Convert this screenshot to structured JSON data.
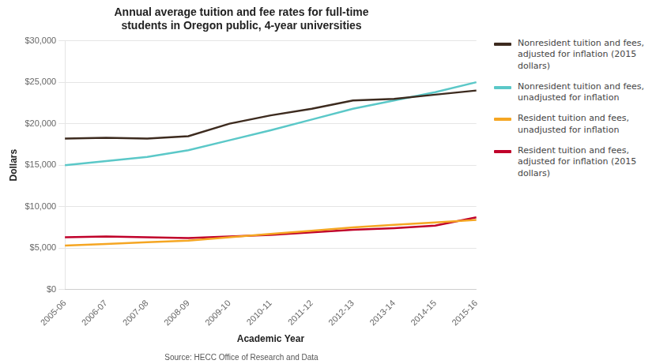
{
  "chart_data": {
    "type": "line",
    "title": "Annual average tuition and fee rates for full-time\nstudents in Oregon public, 4-year universities",
    "x_label": "Academic Year",
    "y_label": "Dollars",
    "annotations": [
      "Source: HECC Office of Research and Data"
    ],
    "categories": [
      "2005-06",
      "2006-07",
      "2007-08",
      "2008-09",
      "2009-10",
      "2010-11",
      "2011-12",
      "2012-13",
      "2013-14",
      "2014-15",
      "2015-16"
    ],
    "series": [
      {
        "name": "Nonresident tuition and fees,\nadjusted for inflation (2015\ndollars)",
        "color": "#3d2b1f",
        "values": [
          18200,
          18300,
          18200,
          18500,
          20000,
          21000,
          21800,
          22800,
          23000,
          23500,
          24000
        ]
      },
      {
        "name": "Nonresident tuition and fees,\nunadjusted for inflation",
        "color": "#5bc8c8",
        "values": [
          15000,
          15500,
          16000,
          16800,
          18000,
          19200,
          20500,
          21800,
          22800,
          23800,
          25000
        ]
      },
      {
        "name": "Resident tuition and fees,\nunadjusted for inflation",
        "color": "#f5a623",
        "values": [
          5300,
          5500,
          5700,
          5900,
          6300,
          6700,
          7100,
          7500,
          7800,
          8100,
          8400
        ]
      },
      {
        "name": "Resident tuition and fees,\nadjusted for inflation (2015\ndollars)",
        "color": "#c0002a",
        "values": [
          6300,
          6400,
          6300,
          6200,
          6400,
          6600,
          6900,
          7200,
          7400,
          7700,
          8700
        ]
      }
    ],
    "ylim": [
      0,
      30000
    ],
    "yticks": [
      {
        "value": 0,
        "label": "$0"
      },
      {
        "value": 5000,
        "label": "$5,000"
      },
      {
        "value": 10000,
        "label": "$10,000"
      },
      {
        "value": 15000,
        "label": "$15,000"
      },
      {
        "value": 20000,
        "label": "$20,000"
      },
      {
        "value": 25000,
        "label": "$25,000"
      },
      {
        "value": 30000,
        "label": "$30,000"
      }
    ],
    "grid": true,
    "legend": "right"
  }
}
